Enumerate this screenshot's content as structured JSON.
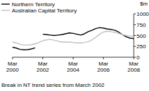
{
  "chart_data": {
    "type": "line",
    "y_label": "$m",
    "annotations": [
      "Break in NT trend series from March 2002"
    ],
    "categories": [
      "Mar 2000",
      null,
      null,
      null,
      null,
      null,
      null,
      null,
      "Mar 2002",
      null,
      null,
      null,
      null,
      null,
      null,
      null,
      "Mar 2004",
      null,
      null,
      null,
      null,
      null,
      null,
      null,
      "Mar 2006",
      null,
      null,
      null,
      null,
      null,
      null,
      null,
      "Mar 2008"
    ],
    "series": [
      {
        "name": "Northern Territory",
        "color": "#000000",
        "values": [
          230,
          210,
          180,
          170,
          175,
          190,
          215,
          null,
          530,
          520,
          510,
          500,
          510,
          520,
          540,
          560,
          550,
          530,
          510,
          540,
          590,
          620,
          660,
          680,
          670,
          650,
          640,
          620,
          580,
          520,
          470,
          440,
          430
        ]
      },
      {
        "name": "Australian Capital Territory",
        "color": "#c0c0c0",
        "values": [
          350,
          330,
          300,
          280,
          280,
          290,
          310,
          340,
          380,
          400,
          410,
          390,
          370,
          350,
          350,
          350,
          340,
          330,
          330,
          340,
          360,
          400,
          460,
          530,
          580,
          600,
          590,
          570,
          550,
          520,
          500,
          490,
          480
        ]
      }
    ],
    "ylim": [
      0,
      1000
    ],
    "yticks": [
      0,
      250,
      500,
      750,
      1000
    ],
    "legend": "top-left"
  }
}
